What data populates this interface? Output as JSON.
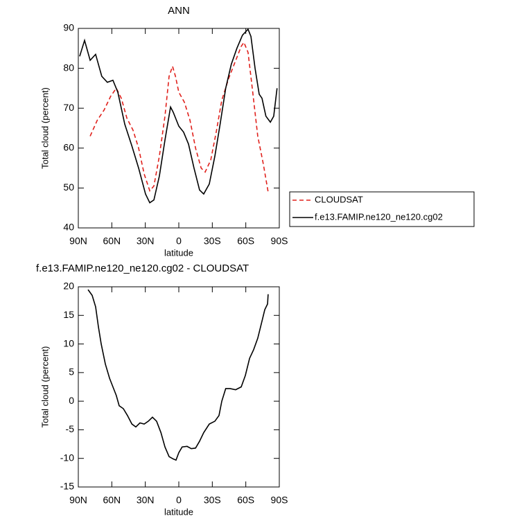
{
  "chart_data": [
    {
      "type": "line",
      "title": "ANN",
      "x_label": "latitude",
      "y_label": "Total cloud (percent)",
      "xlim": [
        90,
        -90
      ],
      "xticks": [
        {
          "value": 90,
          "label": "90N"
        },
        {
          "value": 60,
          "label": "60N"
        },
        {
          "value": 30,
          "label": "30N"
        },
        0,
        {
          "value": -30,
          "label": "30S"
        },
        {
          "value": -60,
          "label": "60S"
        },
        {
          "value": -90,
          "label": "90S"
        }
      ],
      "ylim": [
        40,
        90
      ],
      "yticks": [
        40,
        50,
        60,
        70,
        80,
        90
      ],
      "legend": "right",
      "series": [
        {
          "name": "CLOUDSAT",
          "color": "#e0201b",
          "line_style": "dashed",
          "x": [
            79.4,
            73,
            67,
            61,
            56,
            51.5,
            46.5,
            41,
            36,
            31,
            26,
            22.3,
            17.4,
            12.4,
            8.7,
            5.6,
            3,
            0,
            -5,
            -10,
            -15,
            -20,
            -23.6,
            -28.6,
            -33.5,
            -38.5,
            -44.7,
            -51,
            -55.9,
            -58.3,
            -62,
            -65.8,
            -70.7,
            -75.7,
            -80
          ],
          "values": [
            63,
            67,
            69.5,
            73,
            75,
            72.5,
            67.5,
            64.5,
            60,
            53.5,
            49.3,
            50.5,
            58,
            68,
            78,
            80.5,
            78,
            74,
            71.5,
            67,
            60,
            55,
            54,
            57,
            64,
            72,
            77.5,
            82,
            85.5,
            86.5,
            84,
            75,
            63,
            56,
            49
          ]
        },
        {
          "name": "f.e13.FAMIP.ne120_ne120.cg02",
          "color": "#000000",
          "line_style": "solid",
          "x": [
            88.8,
            84.4,
            79.4,
            74.5,
            69,
            64,
            59,
            54.6,
            48.4,
            42,
            36,
            29.8,
            26,
            22.3,
            17.4,
            12.4,
            7.4,
            5,
            0,
            -4.3,
            -8.7,
            -13.6,
            -18.6,
            -22.3,
            -27.3,
            -32.3,
            -37,
            -42,
            -47,
            -52,
            -57,
            -62,
            -64.6,
            -68.3,
            -72,
            -74.5,
            -78,
            -82,
            -85,
            -88
          ],
          "values": [
            83,
            87,
            82,
            83.5,
            78,
            76.5,
            77,
            74,
            66,
            60.5,
            55,
            48.5,
            46.3,
            47,
            53,
            62,
            70.3,
            69,
            65.5,
            64,
            61,
            55,
            49.5,
            48.5,
            51,
            58,
            66,
            75,
            81,
            85,
            88.3,
            89.8,
            88,
            80,
            73.5,
            72.5,
            68,
            66.5,
            68,
            75
          ]
        }
      ]
    },
    {
      "type": "line",
      "title": "f.e13.FAMIP.ne120_ne120.cg02 - CLOUDSAT",
      "x_label": "latitude",
      "y_label": "Total cloud (percent)",
      "xlim": [
        90,
        -90
      ],
      "xticks": [
        {
          "value": 90,
          "label": "90N"
        },
        {
          "value": 60,
          "label": "60N"
        },
        {
          "value": 30,
          "label": "30N"
        },
        0,
        {
          "value": -30,
          "label": "30S"
        },
        {
          "value": -60,
          "label": "60S"
        },
        {
          "value": -90,
          "label": "90S"
        }
      ],
      "ylim": [
        -15,
        20
      ],
      "yticks": [
        -15,
        -10,
        -5,
        0,
        5,
        10,
        15,
        20
      ],
      "color": "#000000",
      "line_style": "solid",
      "x": [
        81.3,
        77.6,
        74.5,
        72,
        69.5,
        65.8,
        62,
        59,
        56,
        53.4,
        49.7,
        46,
        42,
        38.5,
        34.8,
        31,
        27.3,
        23.6,
        19.9,
        16,
        12.4,
        8.7,
        5,
        2.5,
        0,
        -3,
        -7.4,
        -11.2,
        -15,
        -18.6,
        -22.3,
        -27.3,
        -32.3,
        -36,
        -38.5,
        -42,
        -45.9,
        -50.9,
        -55.9,
        -59.6,
        -63.4,
        -67,
        -70.7,
        -74.5,
        -77,
        -79.5,
        -80
      ],
      "values": [
        19.5,
        18.5,
        16.5,
        13,
        10,
        6.5,
        4,
        2.5,
        1,
        -0.8,
        -1.3,
        -2.5,
        -4,
        -4.5,
        -3.8,
        -4,
        -3.5,
        -2.8,
        -3.5,
        -5.5,
        -8,
        -9.7,
        -10.1,
        -10.3,
        -9,
        -8,
        -7.9,
        -8.3,
        -8.2,
        -7,
        -5.5,
        -4,
        -3.5,
        -2.5,
        0,
        2.2,
        2.2,
        2,
        2.5,
        4.5,
        7.5,
        9,
        11,
        14,
        16,
        17,
        18.7
      ]
    }
  ]
}
